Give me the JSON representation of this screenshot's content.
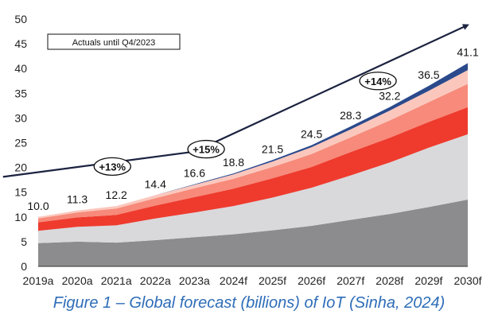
{
  "caption": "Figure 1 – Global forecast (billions) of IoT (Sinha, 2024)",
  "chart_data": {
    "type": "area",
    "stacked": true,
    "categories": [
      "2019a",
      "2020a",
      "2021a",
      "2022a",
      "2023a",
      "2024f",
      "2025f",
      "2026f",
      "2027f",
      "2028f",
      "2029f",
      "2030f"
    ],
    "ylim": [
      0,
      50
    ],
    "yticks": [
      0,
      5,
      10,
      15,
      20,
      25,
      30,
      35,
      40,
      45,
      50
    ],
    "totals": [
      10.0,
      11.3,
      12.2,
      14.4,
      16.6,
      18.8,
      21.5,
      24.5,
      28.3,
      32.2,
      36.5,
      41.1
    ],
    "total_labels": [
      "10.0",
      "11.3",
      "12.2",
      "14.4",
      "16.6",
      "18.8",
      "21.5",
      "24.5",
      "28.3",
      "32.2",
      "36.5",
      "41.1"
    ],
    "series": [
      {
        "color": "#8c8c8e",
        "values": [
          4.7,
          5.0,
          4.8,
          5.3,
          5.9,
          6.5,
          7.3,
          8.2,
          9.4,
          10.6,
          12.0,
          13.5
        ]
      },
      {
        "color": "#d9d9dc",
        "values": [
          2.5,
          3.0,
          3.5,
          4.4,
          5.0,
          5.7,
          6.6,
          7.7,
          9.0,
          10.4,
          12.0,
          13.2
        ]
      },
      {
        "color": "#ee3b2e",
        "values": [
          1.7,
          1.9,
          2.1,
          2.6,
          3.1,
          3.5,
          3.9,
          4.2,
          4.7,
          5.0,
          5.2,
          5.5
        ]
      },
      {
        "color": "#f78a7a",
        "values": [
          0.8,
          1.0,
          1.3,
          1.5,
          1.8,
          2.0,
          2.3,
          2.6,
          3.0,
          3.5,
          4.0,
          4.7
        ]
      },
      {
        "color": "#fbc7bd",
        "values": [
          0.3,
          0.4,
          0.5,
          0.6,
          0.7,
          0.9,
          1.1,
          1.4,
          1.6,
          2.0,
          2.3,
          2.8
        ]
      },
      {
        "color": "#2b4a8c",
        "values": [
          0.0,
          0.0,
          0.0,
          0.0,
          0.1,
          0.2,
          0.3,
          0.4,
          0.6,
          0.7,
          1.0,
          1.4
        ]
      }
    ],
    "annotations": {
      "note": "Actuals until Q4/2023",
      "growth_markers": [
        {
          "label": "+13%",
          "x": 1.9,
          "y": 20.2
        },
        {
          "label": "+15%",
          "x": 4.3,
          "y": 23.7
        },
        {
          "label": "+14%",
          "x": 8.7,
          "y": 37.5
        }
      ],
      "trend_arrow": [
        {
          "x": -0.9,
          "y": 18.1
        },
        {
          "x": 4.0,
          "y": 23.2
        },
        {
          "x": 11.0,
          "y": 48.8
        }
      ]
    },
    "grid": false,
    "legend": "none"
  }
}
